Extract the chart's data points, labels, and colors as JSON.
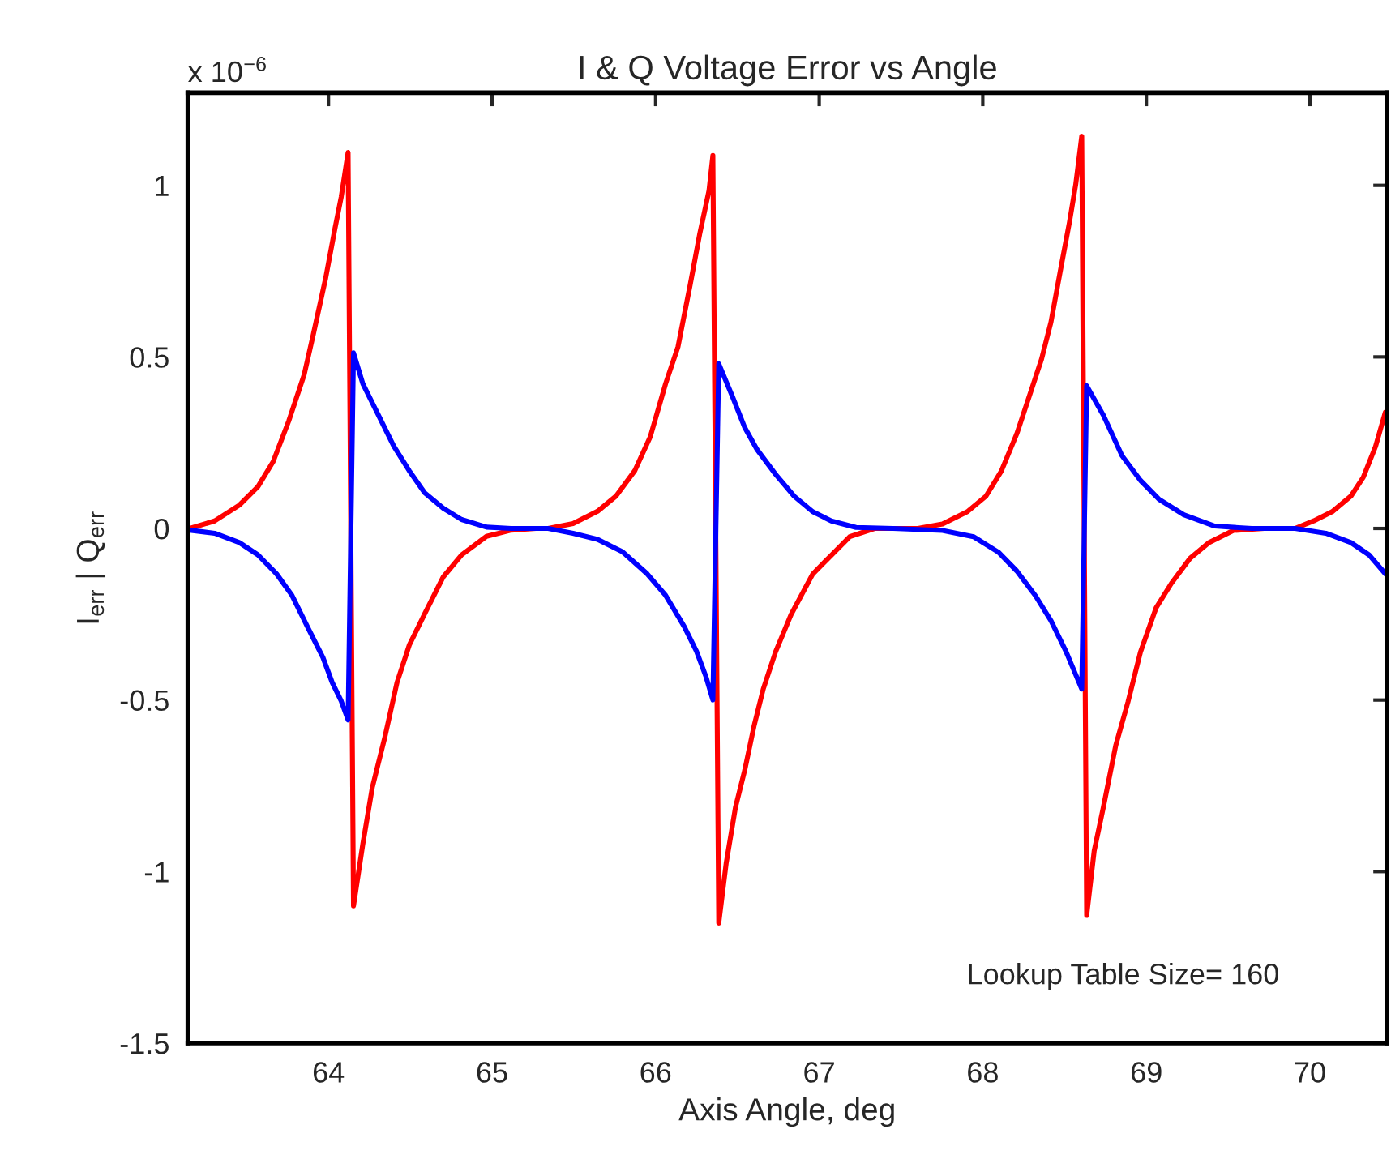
{
  "chart_data": {
    "type": "line",
    "title": "I & Q Voltage Error vs Angle",
    "xlabel": "Axis Angle, deg",
    "ylabel": "I$_{err}$ | Q$_{err}$",
    "annotations": [
      "x 10$^{−6}$",
      "Lookup Table Size= 160"
    ],
    "xlim": [
      63.14,
      70.47
    ],
    "xticks": [
      64,
      65,
      66,
      67,
      68,
      69,
      70
    ],
    "ylim": [
      -1.5,
      1.27
    ],
    "yticks": [
      -1.5,
      -1,
      -0.5,
      0,
      0.5,
      1
    ],
    "grid": false,
    "legend": false,
    "marker": "none",
    "line_style": "solid",
    "series": [
      {
        "color": "#ff0000",
        "x": [
          63.152,
          63.304,
          63.455,
          63.569,
          63.662,
          63.757,
          63.852,
          63.908,
          63.983,
          64.04,
          64.078,
          64.12,
          64.153,
          64.21,
          64.268,
          64.343,
          64.419,
          64.494,
          64.588,
          64.702,
          64.814,
          64.966,
          65.117,
          65.269,
          65.343,
          65.495,
          65.645,
          65.759,
          65.872,
          65.967,
          66.061,
          66.137,
          66.212,
          66.269,
          66.326,
          66.35,
          66.386,
          66.431,
          66.488,
          66.545,
          66.601,
          66.658,
          66.733,
          66.828,
          66.96,
          67.074,
          67.187,
          67.339,
          67.603,
          67.754,
          67.906,
          68.019,
          68.113,
          68.208,
          68.284,
          68.359,
          68.417,
          68.473,
          68.53,
          68.568,
          68.605,
          68.635,
          68.681,
          68.737,
          68.813,
          68.888,
          68.964,
          69.059,
          69.153,
          69.267,
          69.38,
          69.532,
          69.721,
          69.909,
          70.023,
          70.136,
          70.25,
          70.326,
          70.401,
          70.461
        ],
        "values": [
          0,
          0.022,
          0.068,
          0.122,
          0.195,
          0.313,
          0.449,
          0.567,
          0.73,
          0.875,
          0.966,
          1.096,
          -1.1,
          -0.92,
          -0.755,
          -0.612,
          -0.449,
          -0.34,
          -0.249,
          -0.141,
          -0.077,
          -0.023,
          -0.005,
          0,
          0,
          0.014,
          0.05,
          0.095,
          0.168,
          0.267,
          0.422,
          0.53,
          0.712,
          0.857,
          0.984,
          1.087,
          -1.15,
          -0.977,
          -0.813,
          -0.704,
          -0.577,
          -0.468,
          -0.36,
          -0.251,
          -0.133,
          -0.078,
          -0.024,
          0,
          0,
          0.013,
          0.049,
          0.094,
          0.167,
          0.276,
          0.385,
          0.493,
          0.602,
          0.748,
          0.893,
          1.002,
          1.143,
          -1.128,
          -0.94,
          -0.813,
          -0.632,
          -0.505,
          -0.36,
          -0.232,
          -0.16,
          -0.087,
          -0.042,
          -0.006,
          0,
          0,
          0.022,
          0.049,
          0.094,
          0.149,
          0.239,
          0.339
        ]
      },
      {
        "color": "#0000ff",
        "x": [
          63.152,
          63.304,
          63.455,
          63.569,
          63.682,
          63.777,
          63.871,
          63.966,
          64.023,
          64.078,
          64.12,
          64.153,
          64.21,
          64.286,
          64.399,
          64.494,
          64.588,
          64.702,
          64.814,
          64.966,
          65.117,
          65.343,
          65.495,
          65.645,
          65.797,
          65.948,
          66.061,
          66.175,
          66.25,
          66.307,
          66.35,
          66.386,
          66.469,
          66.545,
          66.62,
          66.733,
          66.847,
          66.96,
          67.074,
          67.225,
          67.452,
          67.754,
          67.943,
          68.095,
          68.208,
          68.322,
          68.417,
          68.51,
          68.605,
          68.635,
          68.737,
          68.851,
          68.964,
          69.078,
          69.229,
          69.418,
          69.645,
          69.909,
          70.097,
          70.25,
          70.361,
          70.461
        ],
        "values": [
          -0.005,
          -0.014,
          -0.041,
          -0.077,
          -0.132,
          -0.195,
          -0.286,
          -0.376,
          -0.449,
          -0.503,
          -0.558,
          0.512,
          0.422,
          0.349,
          0.24,
          0.168,
          0.104,
          0.059,
          0.026,
          0.004,
          0,
          0,
          -0.014,
          -0.032,
          -0.068,
          -0.132,
          -0.195,
          -0.286,
          -0.358,
          -0.431,
          -0.5,
          0.48,
          0.385,
          0.294,
          0.23,
          0.158,
          0.094,
          0.049,
          0.022,
          0.003,
          0,
          -0.006,
          -0.024,
          -0.069,
          -0.124,
          -0.196,
          -0.269,
          -0.36,
          -0.468,
          0.416,
          0.33,
          0.212,
          0.14,
          0.085,
          0.04,
          0.007,
          0,
          0,
          -0.014,
          -0.041,
          -0.077,
          -0.132
        ]
      }
    ]
  }
}
